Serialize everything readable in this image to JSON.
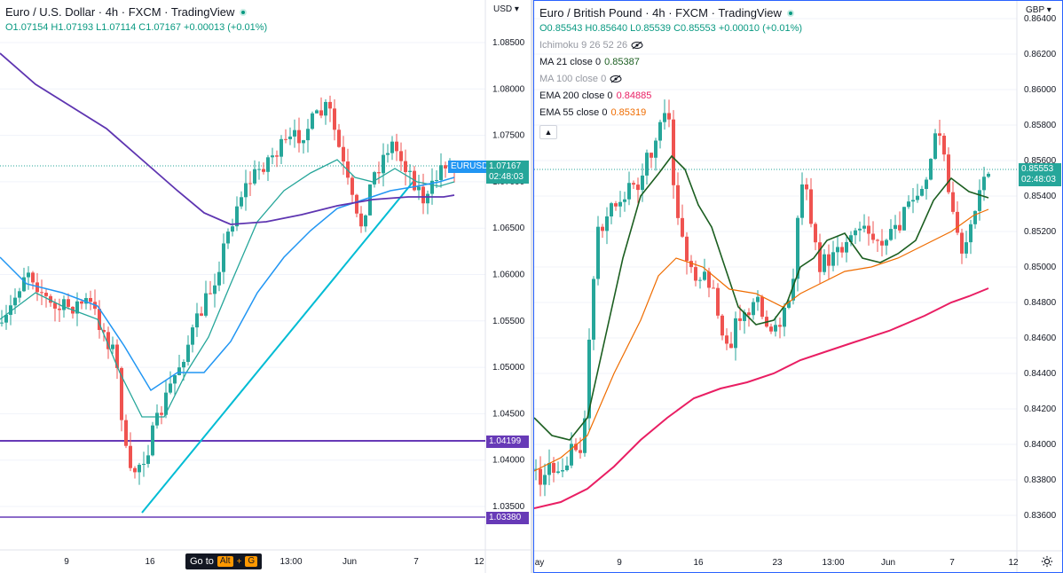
{
  "left": {
    "title": "Euro / U.S. Dollar · 4h · FXCM · TradingView",
    "ohlc": "O1.07154 H1.07193 L1.07114 C1.07167 +0.00013 (+0.01%)",
    "currency": "USD",
    "price_ticks": [
      "1.08500",
      "1.08000",
      "1.07500",
      "1.07000",
      "1.06500",
      "1.06000",
      "1.05500",
      "1.05000",
      "1.04500",
      "1.04000",
      "1.03500"
    ],
    "time_ticks": [
      "9",
      "16",
      "13:00",
      "Jun",
      "7",
      "12"
    ],
    "symbol_tag": "EURUSD",
    "last_price": "1.07167",
    "countdown": "02:48:03",
    "level_1": "1.04199",
    "level_2": "1.03380",
    "goto_label": "Go to",
    "goto_key_1": "Alt",
    "goto_key_plus": "+",
    "goto_key_2": "G"
  },
  "right": {
    "title": "Euro / British Pound · 4h · FXCM · TradingView",
    "ohlc": "O0.85543 H0.85640 L0.85539 C0.85553 +0.00010 (+0.01%)",
    "currency": "GBP",
    "indicators": [
      {
        "label": "Ichimoku 9 26 52 26",
        "value": "",
        "hidden": true
      },
      {
        "label": "MA 21 close 0",
        "value": "0.85387",
        "color": "#1b5e20"
      },
      {
        "label": "MA 100 close 0",
        "value": "",
        "hidden": true
      },
      {
        "label": "EMA 200 close 0",
        "value": "0.84885",
        "color": "#e91e63"
      },
      {
        "label": "EMA 55 close 0",
        "value": "0.85319",
        "color": "#ef6c00"
      }
    ],
    "price_ticks": [
      "0.86400",
      "0.86200",
      "0.86000",
      "0.85800",
      "0.85600",
      "0.85400",
      "0.85200",
      "0.85000",
      "0.84800",
      "0.84600",
      "0.84400",
      "0.84200",
      "0.84000",
      "0.83800",
      "0.83600"
    ],
    "time_ticks": [
      "ay",
      "9",
      "16",
      "23",
      "13:00",
      "Jun",
      "7",
      "12"
    ],
    "last_price": "0.85553",
    "countdown": "02:48:03"
  },
  "colors": {
    "up": "#26a69a",
    "down": "#ef5350",
    "trendline": "#00bcd4",
    "level": "#673ab7",
    "ma_fast": "#26a69a",
    "ma_mid": "#2196f3",
    "ma_slow": "#5e35b1"
  }
}
